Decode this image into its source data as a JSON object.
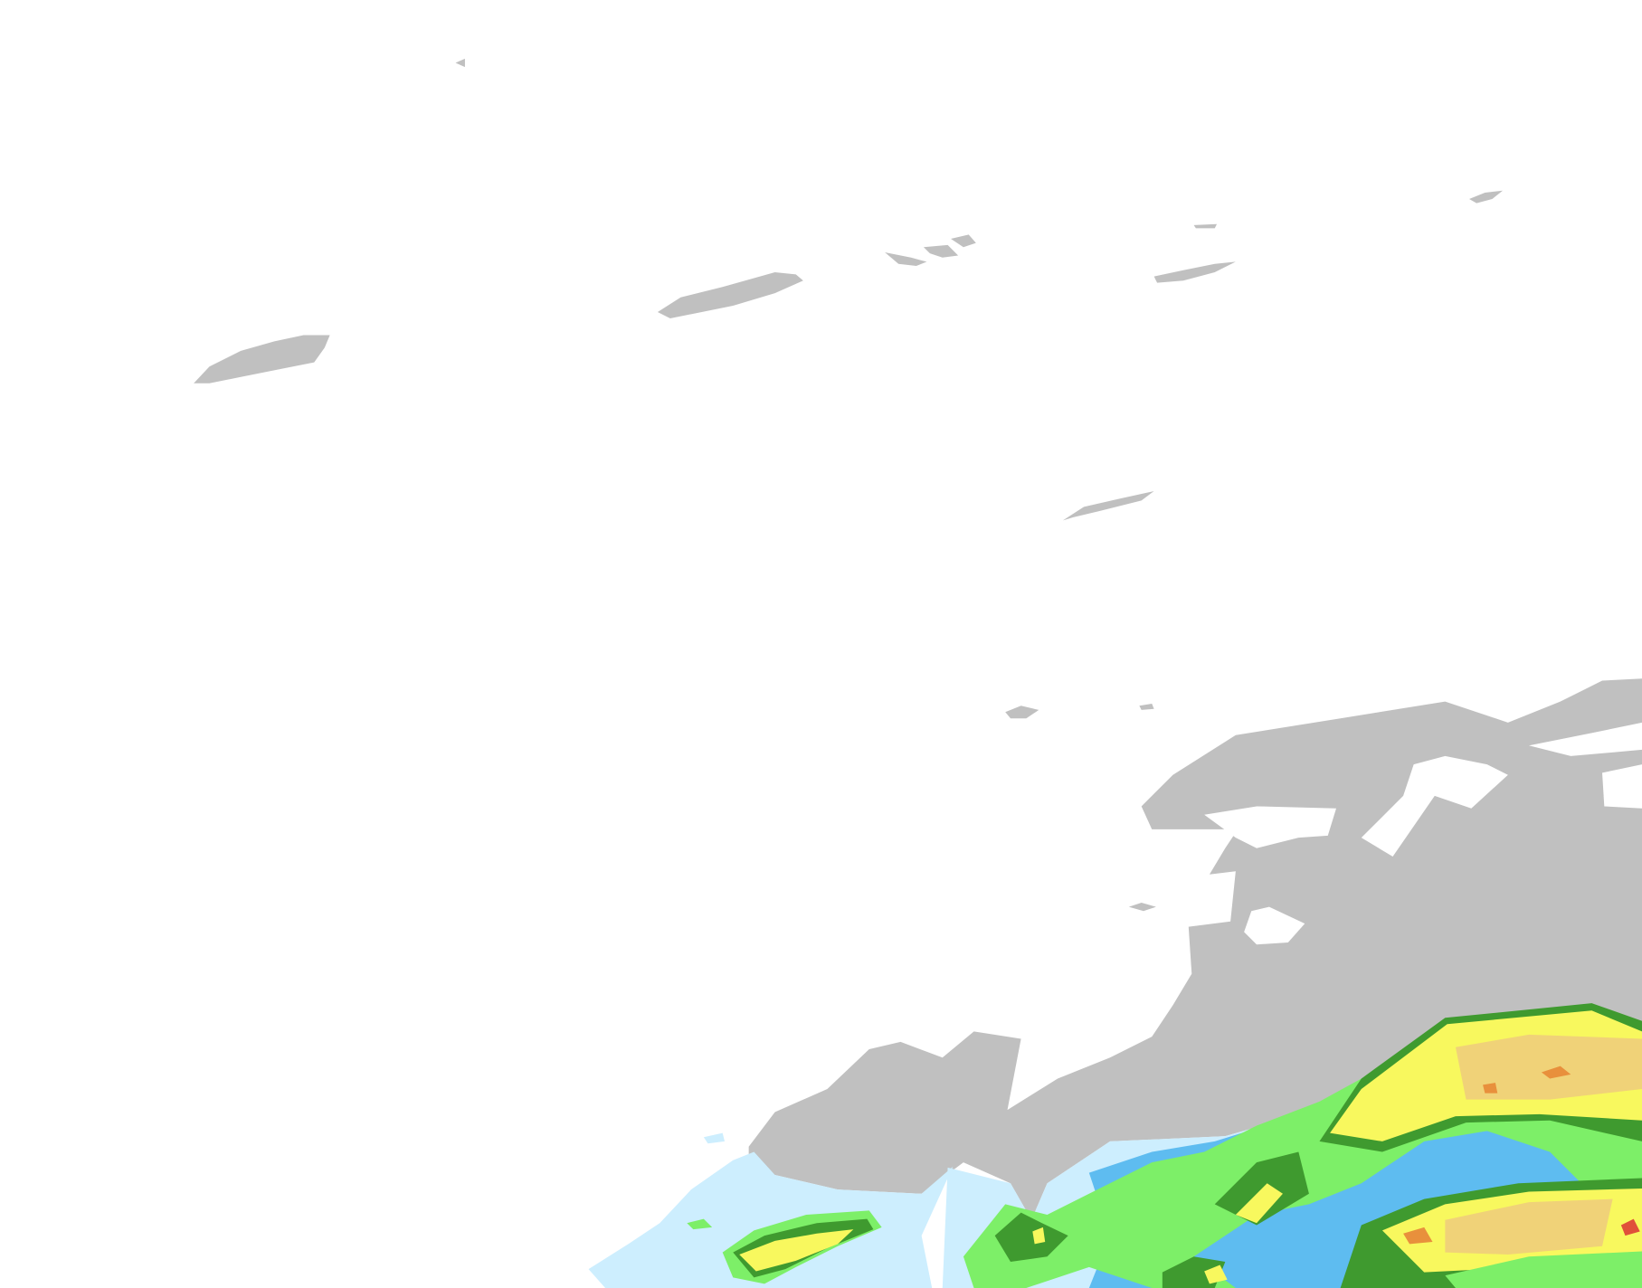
{
  "map": {
    "colors": {
      "background": "#ffffff",
      "land": "#c0c0c0",
      "precip_very_light": "#cdeefe",
      "precip_light": "#5ebcf0",
      "precip_moderate_light": "#7def68",
      "precip_moderate": "#3f9a2f",
      "precip_heavy": "#f8f85e",
      "precip_heavier": "#f0d278",
      "precip_intense": "#e8903c",
      "precip_extreme": "#e0503a"
    }
  }
}
